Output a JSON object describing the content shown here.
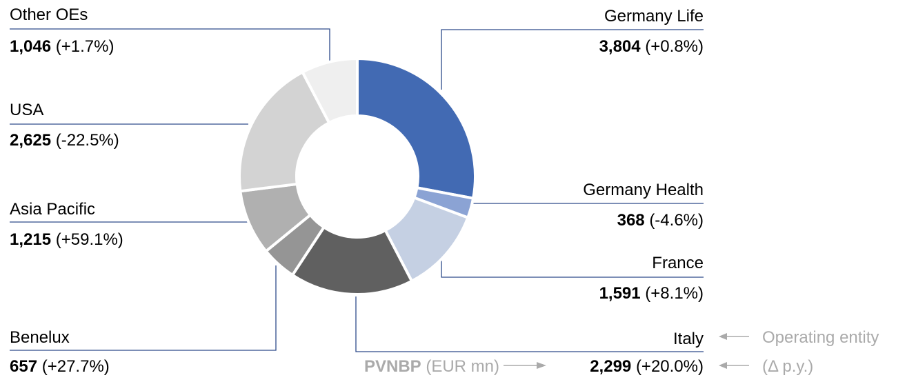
{
  "chart_data": {
    "type": "pie",
    "categories": [
      "Germany Life",
      "Germany Health",
      "France",
      "Italy",
      "Benelux",
      "Asia Pacific",
      "USA",
      "Other OEs"
    ],
    "values": [
      3804,
      368,
      1591,
      2299,
      657,
      1215,
      2625,
      1046
    ],
    "value_labels": [
      "3,804",
      "368",
      "1,591",
      "2,299",
      "657",
      "1,215",
      "2,625",
      "1,046"
    ],
    "change_labels": [
      "(+0.8%)",
      "(-4.6%)",
      "(+8.1%)",
      "(+20.0%)",
      "(+27.7%)",
      "(+59.1%)",
      "(-22.5%)",
      "(+1.7%)"
    ],
    "colors": [
      "#426ab3",
      "#8ba3d4",
      "#c5d0e3",
      "#606060",
      "#959595",
      "#b0b0b0",
      "#d3d3d3",
      "#efefef"
    ],
    "annotations": {
      "entity": "Operating entity",
      "change": "(Δ p.y.)",
      "measure": "PVNBP",
      "unit": "(EUR mn)"
    }
  }
}
